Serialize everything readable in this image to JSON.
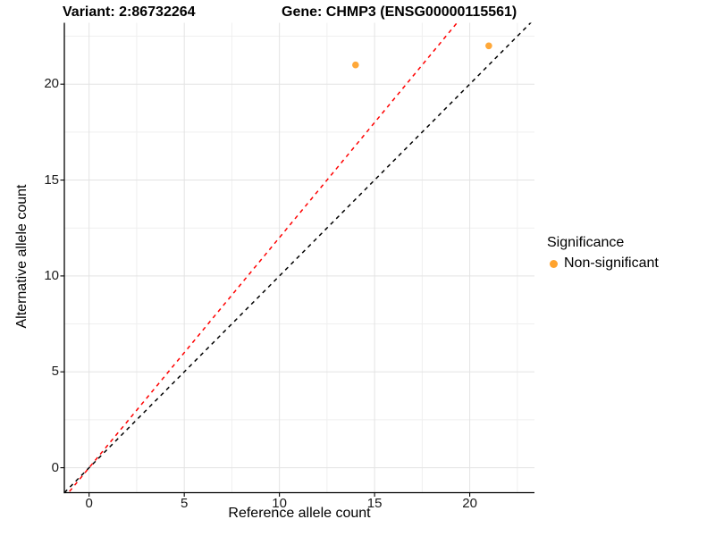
{
  "header": {
    "variant_title": "Variant: 2:86732264",
    "gene_title": "Gene: CHMP3 (ENSG00000115561)"
  },
  "chart_data": {
    "type": "scatter",
    "xlabel": "Reference allele count",
    "ylabel": "Alternative allele count",
    "xlim": [
      -1.3,
      23.4
    ],
    "ylim": [
      -1.3,
      23.2
    ],
    "xticks": [
      0,
      5,
      10,
      15,
      20
    ],
    "yticks": [
      0,
      5,
      10,
      15,
      20
    ],
    "xminor": [
      2.5,
      7.5,
      12.5,
      17.5,
      22.5
    ],
    "yminor": [
      2.5,
      7.5,
      12.5,
      17.5,
      22.5
    ],
    "grid": "major and minor gridlines on white background, axis lines left and bottom only",
    "points": [
      {
        "x": 14,
        "y": 21,
        "series": "Non-significant"
      },
      {
        "x": 21,
        "y": 22,
        "series": "Non-significant"
      }
    ],
    "point_color": "#FFA32E",
    "point_radius": 3.8,
    "lines": [
      {
        "name": "identity",
        "slope": 1,
        "intercept": 0,
        "color": "#000000",
        "style": "dashed"
      },
      {
        "name": "allelic-ratio-fit",
        "slope": 1.2,
        "intercept": 0,
        "color": "#FF0000",
        "style": "dashed"
      }
    ],
    "legend": {
      "title": "Significance",
      "position": "right",
      "items": [
        {
          "label": "Non-significant",
          "color": "#FFA32E"
        }
      ]
    },
    "colors": {
      "grid_major": "#E3E3E3",
      "grid_minor": "#EFEFEF",
      "axis": "#000000",
      "tick_text": "#1a1a1a"
    }
  }
}
